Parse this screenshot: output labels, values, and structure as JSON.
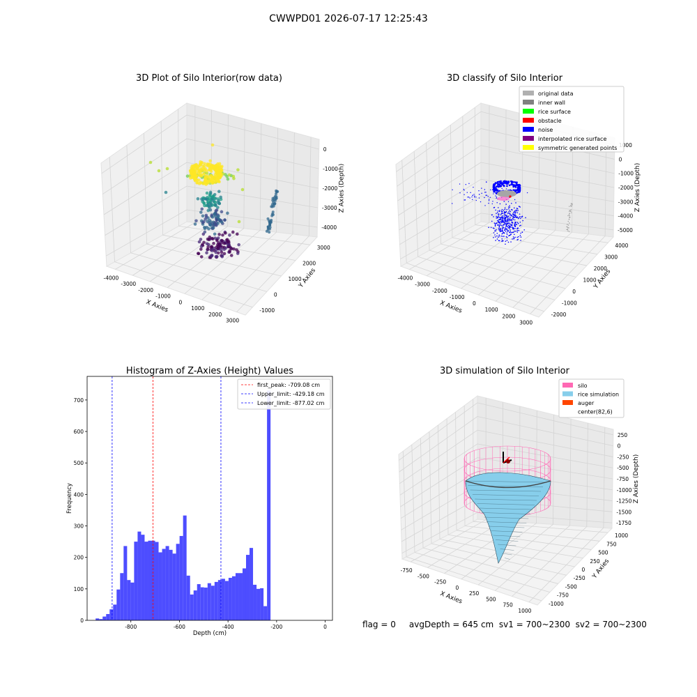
{
  "figure": {
    "suptitle": "CWWPD01 2026-07-17 12:25:43",
    "footer": "flag = 0     avgDepth = 645 cm  sv1 = 700~2300  sv2 = 700~2300"
  },
  "chart_data": [
    {
      "type": "scatter",
      "projection": "3d",
      "title": "3D Plot of Silo Interior(row data)",
      "xlabel": "X Axies",
      "ylabel": "Y Axies",
      "zlabel": "Z Axies (Depth)",
      "x_ticks": [
        -4000,
        -3000,
        -2000,
        -1000,
        0,
        1000,
        2000,
        3000
      ],
      "y_ticks": [
        -1000,
        0,
        1000,
        2000,
        3000
      ],
      "z_ticks": [
        -4000,
        -3000,
        -2000,
        -1000,
        0
      ],
      "colormap": "viridis",
      "grid": true
    },
    {
      "type": "scatter",
      "projection": "3d",
      "title": "3D classify of Silo Interior",
      "xlabel": "X Axies",
      "ylabel": "Y Axies",
      "zlabel": "Z Axies (Depth)",
      "x_ticks": [
        -4000,
        -3000,
        -2000,
        -1000,
        0,
        1000,
        2000,
        3000
      ],
      "y_ticks": [
        -2000,
        -1000,
        0,
        1000,
        2000,
        3000,
        4000
      ],
      "z_ticks": [
        -5000,
        -4000,
        -3000,
        -2000,
        -1000,
        0,
        1000
      ],
      "legend_position": "top-right",
      "legend": [
        {
          "label": "original data",
          "color": "#b0b0b0"
        },
        {
          "label": "inner wall",
          "color": "#808080"
        },
        {
          "label": "rice surface",
          "color": "#00ff00"
        },
        {
          "label": "obstacle",
          "color": "#ff0000"
        },
        {
          "label": "noise",
          "color": "#0000ff"
        },
        {
          "label": "interpolated rice surface",
          "color": "#800080"
        },
        {
          "label": "symmetric generated points",
          "color": "#ffff00"
        }
      ],
      "grid": true
    },
    {
      "type": "bar",
      "title": "Histogram of Z-Axies (Height) Values",
      "xlabel": "Depth (cm)",
      "ylabel": "Frequency",
      "xlim": [
        -980,
        30
      ],
      "ylim": [
        0,
        775
      ],
      "x_ticks": [
        -800,
        -600,
        -400,
        -200,
        0
      ],
      "y_ticks": [
        0,
        100,
        200,
        300,
        400,
        500,
        600,
        700
      ],
      "bar_color": "#4d4dff",
      "bin_width": 14.4,
      "bin_start": -945,
      "values": [
        6,
        4,
        12,
        20,
        35,
        50,
        98,
        150,
        236,
        128,
        120,
        250,
        282,
        272,
        250,
        253,
        253,
        249,
        216,
        227,
        236,
        224,
        212,
        243,
        268,
        333,
        142,
        82,
        95,
        115,
        105,
        104,
        118,
        110,
        122,
        128,
        132,
        125,
        135,
        140,
        150,
        150,
        165,
        208,
        230,
        113,
        100,
        102,
        45,
        730
      ],
      "vlines": [
        {
          "x": -709.08,
          "label": "first_peak: -709.08 cm",
          "color": "#ff0000"
        },
        {
          "x": -429.18,
          "label": "Upper_limit: -429.18 cm",
          "color": "#0000ff"
        },
        {
          "x": -877.02,
          "label": "Lower_limit: -877.02 cm",
          "color": "#0000ff"
        }
      ],
      "legend_position": "top-right"
    },
    {
      "type": "surface",
      "projection": "3d",
      "title": "3D simulation of Silo Interior",
      "xlabel": "X Axies",
      "ylabel": "Y Axies",
      "zlabel": "Z Axies (Depth)",
      "x_ticks": [
        -750,
        -500,
        -250,
        0,
        250,
        500,
        750,
        1000
      ],
      "y_ticks": [
        -1000,
        -750,
        -500,
        -250,
        0,
        250,
        500,
        750,
        1000
      ],
      "z_ticks": [
        -1750,
        -1500,
        -1250,
        -1000,
        -750,
        -500,
        -250,
        0,
        250
      ],
      "legend_position": "top-right",
      "legend": [
        {
          "label": "silo",
          "color": "#ff69b4"
        },
        {
          "label": "rice simulation",
          "color": "#87ceeb"
        },
        {
          "label": "auger",
          "color": "#ff4500"
        },
        {
          "label": "center(82,6)",
          "color": "#ffffff"
        }
      ],
      "grid": true
    }
  ]
}
